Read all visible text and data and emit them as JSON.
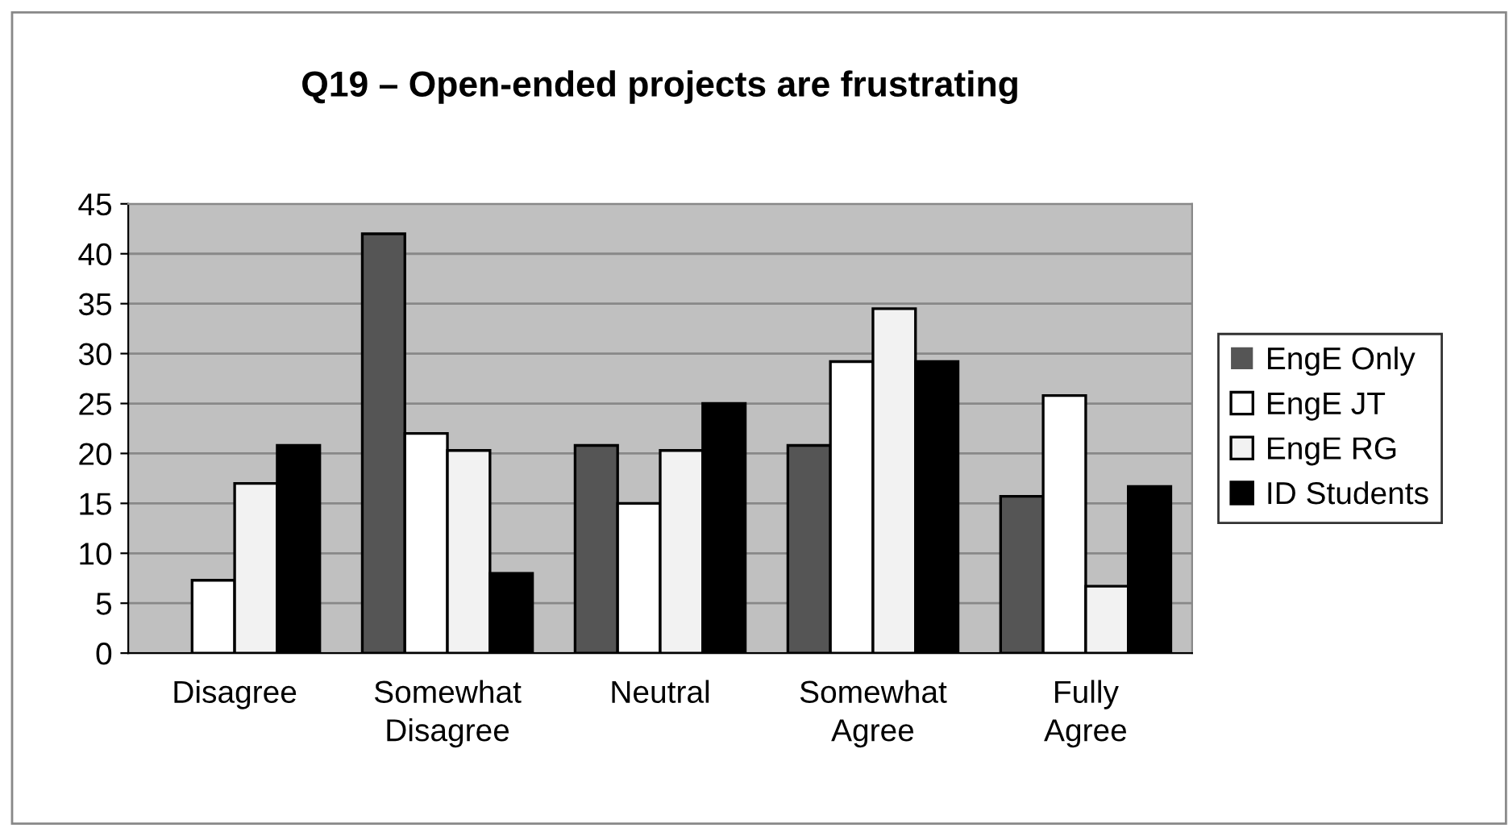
{
  "chart_data": {
    "type": "bar",
    "title": "Q19 – Open-ended projects are frustrating",
    "categories": [
      "Disagree",
      "Somewhat\nDisagree",
      "Neutral",
      "Somewhat\nAgree",
      "Fully\nAgree"
    ],
    "series": [
      {
        "name": "EngE Only",
        "color": "#555555",
        "values": [
          0,
          42,
          20.8,
          20.8,
          15.7
        ]
      },
      {
        "name": "EngE JT",
        "color": "#ffffff",
        "values": [
          7.3,
          22,
          15,
          29.2,
          25.8
        ]
      },
      {
        "name": "EngE RG",
        "color": "#f2f2f2",
        "values": [
          17,
          20.3,
          20.3,
          34.5,
          6.7
        ]
      },
      {
        "name": "ID Students",
        "color": "#000000",
        "values": [
          20.8,
          8,
          25,
          29.2,
          16.7
        ]
      }
    ],
    "ylim": [
      0,
      45
    ],
    "yticks": [
      0,
      5,
      10,
      15,
      20,
      25,
      30,
      35,
      40,
      45
    ],
    "grid": "y",
    "legend": "right"
  }
}
